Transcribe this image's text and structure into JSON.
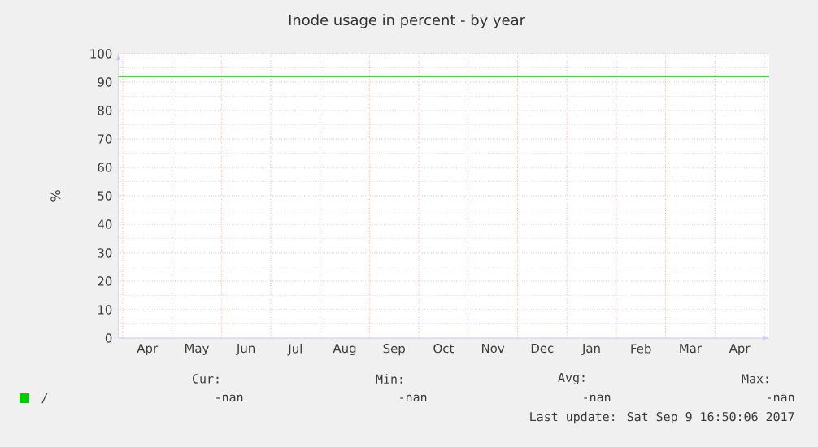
{
  "chart_data": {
    "type": "line",
    "title": "Inode usage in percent - by year",
    "ylabel": "%",
    "categories": [
      "Apr",
      "May",
      "Jun",
      "Jul",
      "Aug",
      "Sep",
      "Oct",
      "Nov",
      "Dec",
      "Jan",
      "Feb",
      "Mar",
      "Apr"
    ],
    "series": [
      {
        "name": "/",
        "color": "#00cc00",
        "values": [
          null,
          null,
          null,
          null,
          null,
          null,
          null,
          null,
          null,
          null,
          null,
          null,
          null
        ]
      }
    ],
    "ylim": [
      0,
      100
    ],
    "yticks": [
      0,
      10,
      20,
      30,
      40,
      50,
      60,
      70,
      80,
      90,
      100
    ],
    "grid": true,
    "legend": "bottom left",
    "ref_lines": [
      {
        "axis": "y",
        "value": 92,
        "color": "#00cc00"
      }
    ],
    "annotations": [
      "Cur:",
      "Min:",
      "Avg:",
      "Max:",
      "-nan",
      "-nan",
      "-nan",
      "-nan",
      "Last update: Sat Sep 9 16:50:06 2017"
    ]
  }
}
